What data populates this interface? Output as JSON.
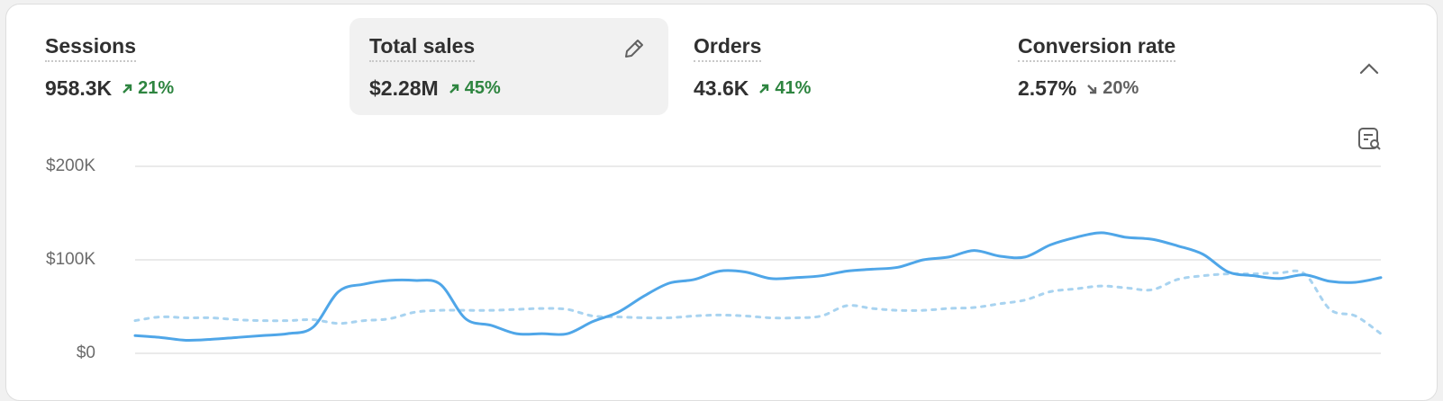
{
  "metrics": [
    {
      "label": "Sessions",
      "value": "958.3K",
      "change": "21%",
      "trend": "up",
      "selected": false
    },
    {
      "label": "Total sales",
      "value": "$2.28M",
      "change": "45%",
      "trend": "up",
      "selected": true
    },
    {
      "label": "Orders",
      "value": "43.6K",
      "change": "41%",
      "trend": "up",
      "selected": false
    },
    {
      "label": "Conversion rate",
      "value": "2.57%",
      "change": "20%",
      "trend": "down",
      "selected": false
    }
  ],
  "chart_data": {
    "type": "line",
    "ylim": [
      0,
      200000
    ],
    "yticks": [
      {
        "value": 0,
        "label": "$0"
      },
      {
        "value": 100000,
        "label": "$100K"
      },
      {
        "value": 200000,
        "label": "$200K"
      }
    ],
    "grid": true,
    "series": [
      {
        "color": "#4fa6e8",
        "dash": false,
        "values": [
          19000,
          17000,
          14000,
          15000,
          17000,
          19000,
          21000,
          28000,
          66000,
          74000,
          78000,
          78000,
          74000,
          37000,
          30000,
          21000,
          21000,
          21000,
          34000,
          44000,
          61000,
          75000,
          79000,
          88000,
          87000,
          80000,
          81000,
          83000,
          88000,
          90000,
          92000,
          100000,
          103000,
          110000,
          104000,
          103000,
          116000,
          124000,
          129000,
          124000,
          122000,
          115000,
          106000,
          87000,
          83000,
          80000,
          84000,
          77000,
          76000,
          81000
        ]
      },
      {
        "color": "#a8d3f0",
        "dash": true,
        "values": [
          35000,
          39000,
          38000,
          38000,
          36000,
          35000,
          35000,
          36000,
          32000,
          35000,
          37000,
          44000,
          46000,
          46000,
          46000,
          47000,
          48000,
          47000,
          40000,
          39000,
          38000,
          38000,
          40000,
          41000,
          40000,
          38000,
          38000,
          40000,
          51000,
          48000,
          46000,
          46000,
          48000,
          49000,
          53000,
          57000,
          66000,
          69000,
          72000,
          70000,
          68000,
          79000,
          83000,
          85000,
          85000,
          86000,
          85000,
          47000,
          40000,
          21000
        ]
      }
    ]
  }
}
